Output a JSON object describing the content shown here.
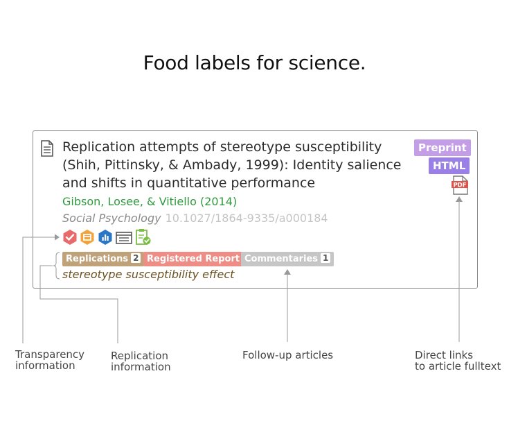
{
  "headline": "Food labels for science.",
  "article": {
    "title": "Replication attempts of stereotype susceptibility (Shih, Pittinsky, & Ambady, 1999): Identity salience and shifts in quantitative performance",
    "authors": "Gibson, Losee, & Vitiello (2014)",
    "journal": "Social Psychology",
    "doi": "10.1027/1864-9335/a000184",
    "formats": {
      "preprint": "Preprint",
      "html": "HTML",
      "pdf_label": "PDF"
    },
    "tags": {
      "replications": {
        "label": "Replications",
        "count": "2"
      },
      "registered_report": "Registered Report",
      "commentaries": {
        "label": "Commentaries",
        "count": "1"
      }
    },
    "topic": "stereotype susceptibility effect"
  },
  "transparency_badges": [
    "check-hexagon-icon",
    "box-hexagon-icon",
    "bar-chart-hexagon-icon",
    "browser-window-icon",
    "clipboard-check-icon"
  ],
  "captions": {
    "transparency": [
      "Transparency",
      "information"
    ],
    "replication": [
      "Replication",
      "information"
    ],
    "followup": [
      "Follow-up articles"
    ],
    "direct": [
      "Direct links",
      "to article fulltext"
    ]
  },
  "colors": {
    "authors": "#2f9a3f",
    "replications_tag": "#bfa17a",
    "registered_tag": "#ee8d85",
    "commentaries_tag": "#c6c6c6",
    "preprint": "#c39ee6",
    "html": "#9a7fe6",
    "pdf": "#e0524a",
    "badge_red": "#e86a6a",
    "badge_orange": "#f2a33a",
    "badge_blue": "#2a76c6",
    "badge_green": "#7bbf44"
  }
}
